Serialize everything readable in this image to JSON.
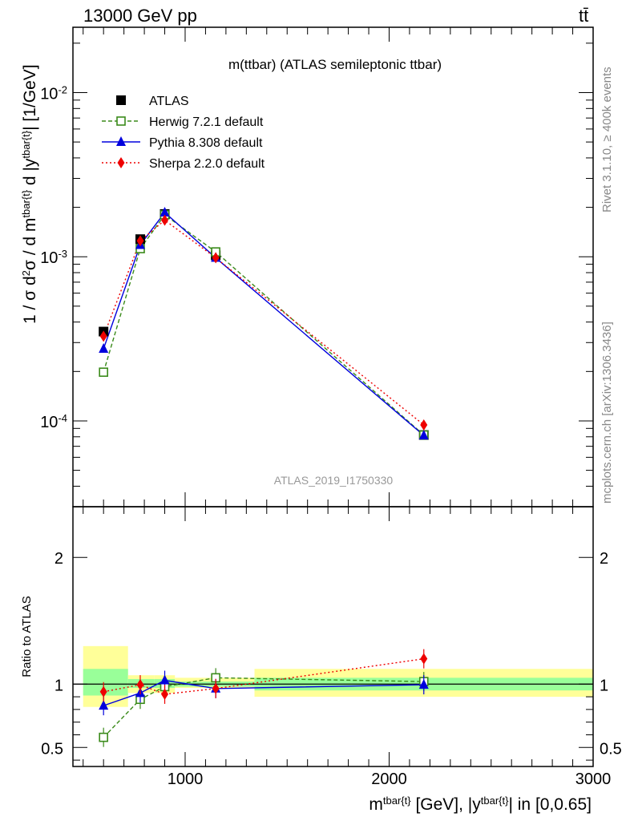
{
  "header": {
    "energy_label": "13000 GeV pp",
    "process_label": "tt̄"
  },
  "side_labels": {
    "rivet": "Rivet 3.1.10, ≥ 400k events",
    "mcplots": "mcplots.cern.ch [arXiv:1306.3436]"
  },
  "chart_data": [
    {
      "type": "line",
      "title": "m(ttbar) (ATLAS semileptonic ttbar)",
      "watermark": "ATLAS_2019_I1750330",
      "ylabel": "1 / σ d²σ / d m^{tbar{t}} d |y^{tbar{t}}| [1/GeV]",
      "yscale": "log",
      "ylim": [
        3e-05,
        0.025
      ],
      "xlim": [
        450,
        3000
      ],
      "yticks": [
        "10^{-4}",
        "10^{-3}",
        "10^{-2}"
      ],
      "legend": "top-left",
      "x": [
        600,
        780,
        900,
        1150,
        2170
      ],
      "series": [
        {
          "name": "ATLAS",
          "color": "#000000",
          "marker": "square-filled",
          "values": [
            0.00035,
            0.00128,
            0.00182,
            0.00102,
            8.2e-05
          ]
        },
        {
          "name": "Herwig 7.2.1 default",
          "color": "#3a8a1a",
          "marker": "square-open",
          "dash": "dashed",
          "values": [
            0.000198,
            0.00112,
            0.0018,
            0.00107,
            8.2e-05
          ]
        },
        {
          "name": "Pythia 8.308 default",
          "color": "#0000dd",
          "marker": "triangle",
          "dash": "solid",
          "values": [
            0.000275,
            0.00118,
            0.00186,
            0.000985,
            8.15e-05
          ]
        },
        {
          "name": "Sherpa 2.2.0 default",
          "color": "#ee0000",
          "marker": "diamond",
          "dash": "dotted",
          "values": [
            0.000328,
            0.00125,
            0.00167,
            0.000985,
            9.45e-05
          ]
        }
      ]
    },
    {
      "type": "line",
      "ylabel": "Ratio to ATLAS",
      "xlabel": "m^{tbar{t}} [GeV], |y^{tbar{t}}| in [0,0.65]",
      "ylim": [
        0.35,
        2.4
      ],
      "xlim": [
        450,
        3000
      ],
      "yticks": [
        "0.5",
        "1",
        "2"
      ],
      "xticks": [
        "1000",
        "2000",
        "3000"
      ],
      "bins": [
        [
          500,
          720
        ],
        [
          720,
          850
        ],
        [
          850,
          950
        ],
        [
          950,
          1340
        ],
        [
          1340,
          3000
        ]
      ],
      "band_inner": [
        [
          0.91,
          1.12
        ],
        [
          0.97,
          1.04
        ],
        [
          0.97,
          1.04
        ],
        [
          0.98,
          1.02
        ],
        [
          0.95,
          1.05
        ]
      ],
      "band_outer": [
        [
          0.82,
          1.3
        ],
        [
          0.93,
          1.07
        ],
        [
          0.93,
          1.07
        ],
        [
          0.97,
          1.05
        ],
        [
          0.9,
          1.12
        ]
      ],
      "x": [
        600,
        780,
        900,
        1150,
        2170
      ],
      "series": [
        {
          "name": "Herwig 7.2.1 default",
          "color": "#3a8a1a",
          "values": [
            0.58,
            0.88,
            0.98,
            1.05,
            1.02
          ]
        },
        {
          "name": "Pythia 8.308 default",
          "color": "#0000dd",
          "values": [
            0.83,
            0.93,
            1.03,
            0.965,
            0.995
          ]
        },
        {
          "name": "Sherpa 2.2.0 default",
          "color": "#ee0000",
          "values": [
            0.94,
            0.995,
            0.92,
            0.965,
            1.2
          ]
        }
      ]
    }
  ]
}
